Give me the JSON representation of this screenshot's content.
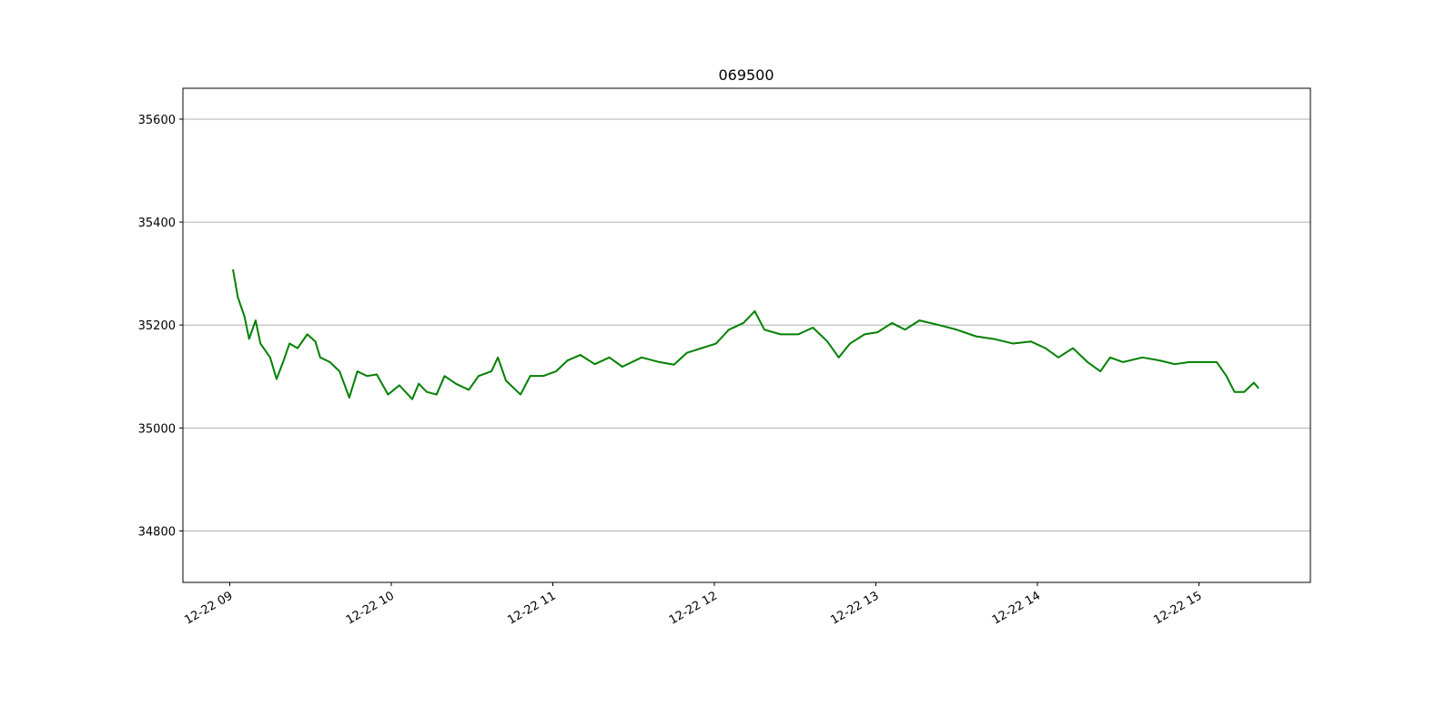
{
  "chart_data": {
    "type": "line",
    "title": "069500",
    "x": [
      9.02,
      9.05,
      9.09,
      9.12,
      9.16,
      9.19,
      9.25,
      9.29,
      9.33,
      9.37,
      9.42,
      9.48,
      9.53,
      9.56,
      9.62,
      9.68,
      9.74,
      9.79,
      9.85,
      9.91,
      9.98,
      10.05,
      10.13,
      10.17,
      10.22,
      10.28,
      10.33,
      10.4,
      10.48,
      10.54,
      10.62,
      10.66,
      10.71,
      10.8,
      10.86,
      10.94,
      11.02,
      11.09,
      11.17,
      11.26,
      11.35,
      11.43,
      11.55,
      11.66,
      11.75,
      11.83,
      11.92,
      12.01,
      12.09,
      12.18,
      12.25,
      12.31,
      12.41,
      12.52,
      12.61,
      12.7,
      12.77,
      12.84,
      12.93,
      13.01,
      13.1,
      13.18,
      13.27,
      13.39,
      13.5,
      13.62,
      13.73,
      13.85,
      13.96,
      14.05,
      14.13,
      14.22,
      14.31,
      14.39,
      14.45,
      14.53,
      14.65,
      14.76,
      14.85,
      14.94,
      15.05,
      15.11,
      15.17,
      15.22,
      15.28,
      15.34,
      15.37
    ],
    "series": [
      {
        "name": "069500",
        "color": "#008000",
        "values": [
          35308,
          35254,
          35218,
          35173,
          35209,
          35164,
          35137,
          35095,
          35128,
          35164,
          35155,
          35182,
          35168,
          35137,
          35128,
          35110,
          35059,
          35110,
          35101,
          35104,
          35065,
          35083,
          35056,
          35086,
          35070,
          35065,
          35101,
          35086,
          35074,
          35101,
          35110,
          35137,
          35092,
          35065,
          35101,
          35101,
          35110,
          35131,
          35142,
          35124,
          35137,
          35119,
          35137,
          35128,
          35123,
          35146,
          35155,
          35164,
          35191,
          35204,
          35227,
          35191,
          35182,
          35182,
          35195,
          35168,
          35137,
          35164,
          35182,
          35186,
          35204,
          35191,
          35209,
          35200,
          35191,
          35178,
          35173,
          35164,
          35168,
          35155,
          35137,
          35155,
          35128,
          35110,
          35137,
          35128,
          35137,
          35131,
          35124,
          35128,
          35128,
          35128,
          35101,
          35070,
          35070,
          35088,
          35077
        ]
      }
    ],
    "xlim": [
      8.71,
      15.69
    ],
    "xticks": [
      {
        "value": 9,
        "label": "12-22 09"
      },
      {
        "value": 10,
        "label": "12-22 10"
      },
      {
        "value": 11,
        "label": "12-22 11"
      },
      {
        "value": 12,
        "label": "12-22 12"
      },
      {
        "value": 13,
        "label": "12-22 13"
      },
      {
        "value": 14,
        "label": "12-22 14"
      },
      {
        "value": 15,
        "label": "12-22 15"
      }
    ],
    "ylim": [
      34700,
      35660
    ],
    "yticks": [
      34800,
      35000,
      35200,
      35400,
      35600
    ],
    "grid": "y"
  }
}
